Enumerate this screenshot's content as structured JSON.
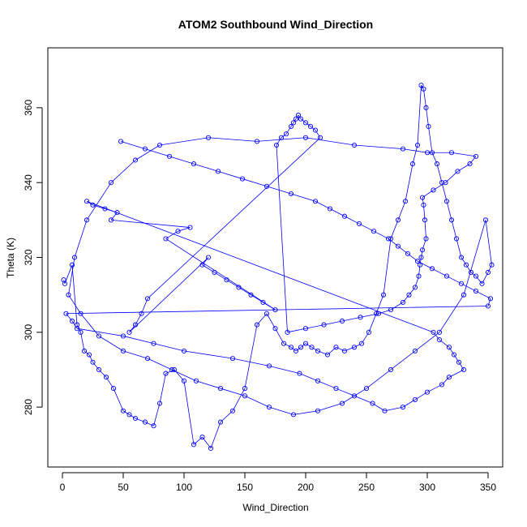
{
  "chart_data": {
    "type": "line",
    "title": "ATOM2 Southbound Wind_Direction",
    "xlabel": "Wind_Direction",
    "ylabel": "Theta (K)",
    "xlim": [
      -12,
      362
    ],
    "ylim": [
      264,
      376
    ],
    "x_ticks": [
      0,
      50,
      100,
      150,
      200,
      250,
      300,
      350
    ],
    "y_ticks": [
      280,
      300,
      320,
      340,
      360
    ],
    "x_tick_labels": [
      "0",
      "50",
      "100",
      "150",
      "200",
      "250",
      "300",
      "350"
    ],
    "y_tick_labels": [
      "280",
      "300",
      "320",
      "340",
      "360"
    ],
    "grid": false,
    "legend": "none",
    "series_style": "points connected by lines (type o)",
    "color": "#0000ff",
    "points": {
      "x": [
        1,
        2,
        8,
        12,
        15,
        18,
        22,
        25,
        30,
        36,
        42,
        50,
        55,
        60,
        68,
        75,
        80,
        85,
        92,
        100,
        108,
        115,
        122,
        130,
        140,
        150,
        160,
        168,
        175,
        182,
        188,
        192,
        196,
        200,
        205,
        210,
        218,
        225,
        232,
        240,
        246,
        252,
        258,
        264,
        270,
        276,
        282,
        288,
        292,
        295,
        297,
        299,
        301,
        304,
        308,
        312,
        316,
        320,
        324,
        328,
        332,
        336,
        340,
        345,
        350,
        353,
        348,
        330,
        310,
        290,
        270,
        250,
        230,
        210,
        190,
        170,
        150,
        130,
        110,
        90,
        70,
        50,
        30,
        15,
        5,
        10,
        20,
        40,
        60,
        80,
        120,
        160,
        200,
        240,
        280,
        300,
        320,
        340,
        335,
        325,
        315,
        305,
        296,
        297,
        298,
        299,
        296,
        295,
        294,
        293,
        290,
        285,
        280,
        270,
        260,
        245,
        230,
        215,
        200,
        185,
        176,
        180,
        184,
        188,
        190,
        192,
        194,
        196,
        200,
        204,
        208,
        212,
        70,
        65,
        60,
        55,
        120,
        115,
        125,
        135,
        145,
        155,
        165,
        175,
        85,
        95,
        105,
        40,
        45,
        35,
        25,
        20,
        305,
        310,
        318,
        322,
        326,
        330,
        318,
        312,
        300,
        290,
        280,
        265,
        255,
        240,
        225,
        210,
        195,
        170,
        140,
        100,
        75,
        50,
        12,
        8,
        3,
        350,
        352,
        340,
        328,
        316,
        304,
        292,
        284,
        276,
        268,
        256,
        244,
        232,
        220,
        208,
        188,
        168,
        148,
        128,
        108,
        88,
        68,
        48
      ],
      "y": [
        314,
        313,
        318,
        302,
        300,
        295,
        294,
        292,
        290,
        288,
        285,
        279,
        278,
        277,
        276,
        275,
        281,
        289,
        290,
        287,
        270,
        272,
        269,
        276,
        279,
        285,
        302,
        305,
        301,
        297,
        296,
        295,
        296,
        297,
        296,
        295,
        294,
        296,
        295,
        296,
        297,
        300,
        305,
        310,
        325,
        330,
        335,
        345,
        350,
        366,
        365,
        360,
        355,
        348,
        345,
        340,
        335,
        330,
        325,
        320,
        318,
        316,
        315,
        313,
        316,
        318,
        330,
        310,
        300,
        295,
        290,
        285,
        281,
        279,
        278,
        280,
        283,
        285,
        287,
        290,
        293,
        295,
        299,
        305,
        310,
        320,
        330,
        340,
        346,
        350,
        352,
        351,
        352,
        350,
        349,
        348,
        348,
        347,
        345,
        343,
        340,
        338,
        336,
        334,
        330,
        325,
        322,
        320,
        318,
        315,
        312,
        310,
        308,
        306,
        305,
        304,
        303,
        302,
        301,
        300,
        350,
        352,
        353,
        355,
        356,
        357,
        358,
        357,
        356,
        355,
        354,
        352,
        309,
        305,
        302,
        300,
        320,
        318,
        316,
        314,
        312,
        310,
        308,
        306,
        325,
        327,
        328,
        330,
        332,
        333,
        334,
        335,
        300,
        298,
        296,
        294,
        292,
        290,
        288,
        286,
        284,
        282,
        280,
        279,
        281,
        283,
        285,
        287,
        289,
        291,
        293,
        295,
        297,
        299,
        301,
        303,
        305,
        307,
        309,
        311,
        313,
        315,
        317,
        319,
        321,
        323,
        325,
        327,
        329,
        331,
        333,
        335,
        337,
        339,
        341,
        343,
        345,
        347,
        349,
        351
      ]
    }
  }
}
